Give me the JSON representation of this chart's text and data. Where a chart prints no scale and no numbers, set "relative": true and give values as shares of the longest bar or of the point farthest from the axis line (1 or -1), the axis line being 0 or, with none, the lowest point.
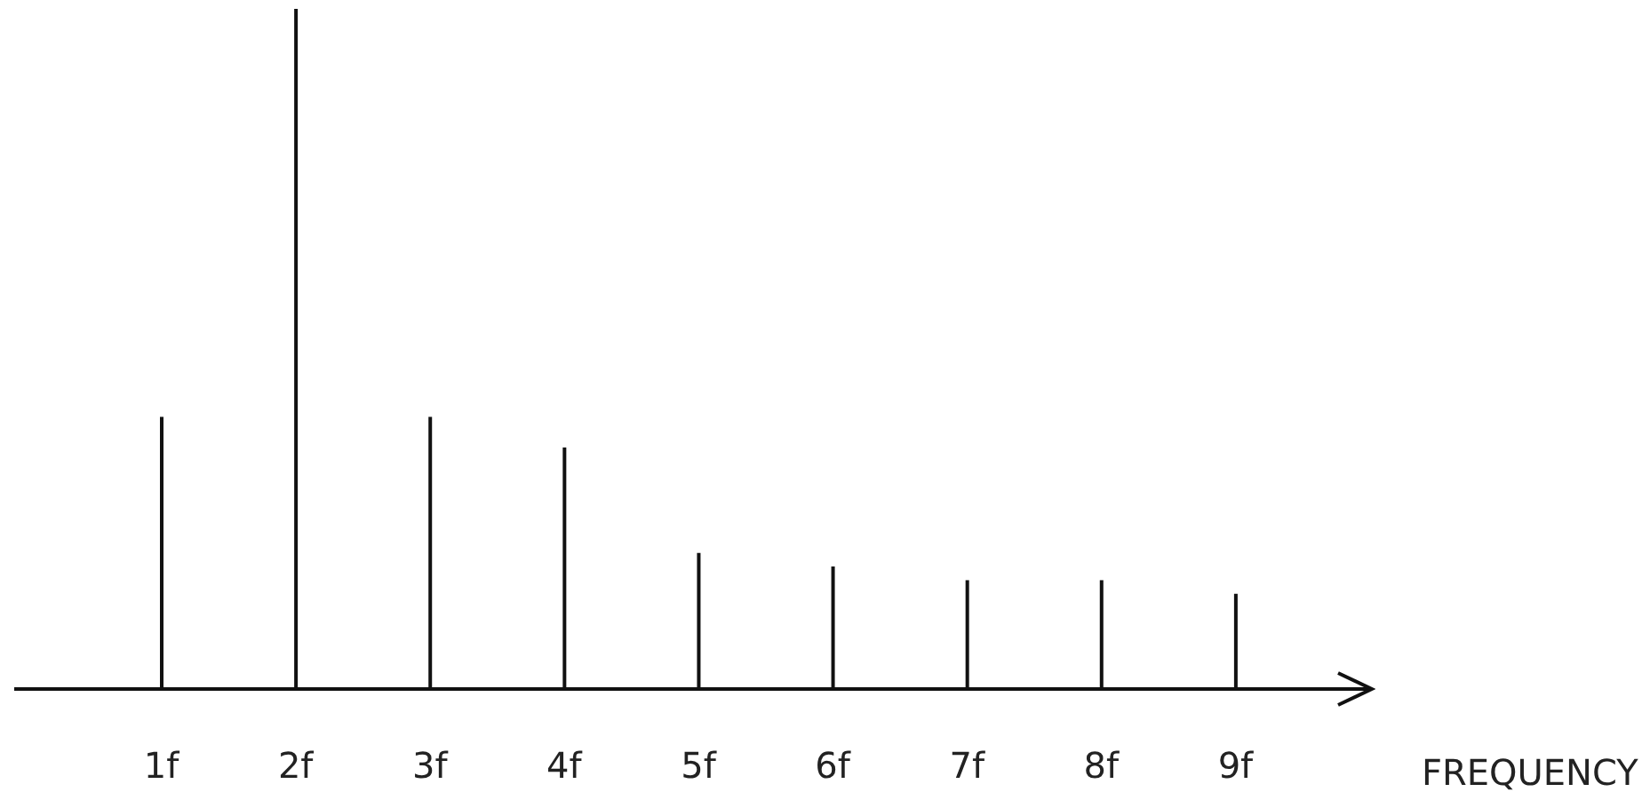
{
  "chart_data": {
    "type": "bar",
    "relative": true,
    "xlabel": "FREQUENCY",
    "categories": [
      "1f",
      "2f",
      "3f",
      "4f",
      "5f",
      "6f",
      "7f",
      "8f",
      "9f"
    ],
    "values": [
      0.4,
      1,
      0.4,
      0.355,
      0.2,
      0.18,
      0.16,
      0.16,
      0.14
    ],
    "color": "#111111"
  }
}
